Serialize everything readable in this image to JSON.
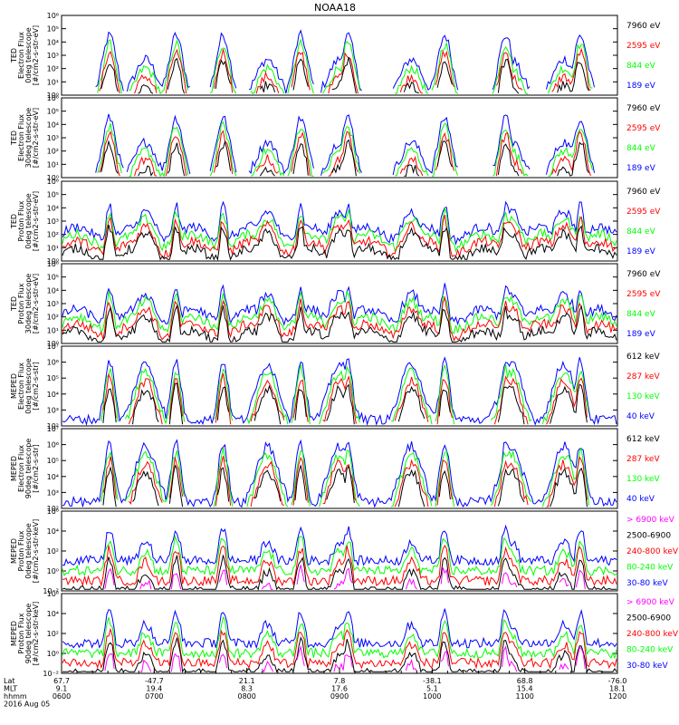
{
  "title": "NOAA18",
  "colors": {
    "black": "#000000",
    "red": "#ff0000",
    "green": "#00ff00",
    "blue": "#0000ff",
    "magenta": "#ff00ff"
  },
  "chart_data": {
    "type": "line",
    "x_tick_labels": {
      "lat": [
        "67.7",
        "-47.7",
        "21.1",
        "7.8",
        "-38.1",
        "68.8",
        "-76.0"
      ],
      "mlt": [
        "9.1",
        "19.4",
        "8.3",
        "17.6",
        "5.1",
        "15.4",
        "18.1"
      ],
      "hhmm": [
        "0600",
        "0700",
        "0800",
        "0900",
        "1000",
        "1100",
        "1200"
      ]
    },
    "x_row_labels": [
      "Lat",
      "MLT",
      "hhmm"
    ],
    "date_label": "2016 Aug 05",
    "xlim": [
      "0600",
      "1200"
    ],
    "panels": [
      {
        "ylabel": [
          "TED",
          "Electron Flux",
          "0deg telescope",
          "[#/cm2-s-str-eV]"
        ],
        "yticks": [
          "10⁰",
          "10¹",
          "10²",
          "10³",
          "10⁴",
          "10⁵",
          "10⁶"
        ],
        "ylim": [
          1,
          1000000
        ],
        "log": true,
        "legend": [
          {
            "label": "7960 eV",
            "color": "#000000"
          },
          {
            "label": "2595 eV",
            "color": "#ff0000"
          },
          {
            "label": "844 eV",
            "color": "#00ff00"
          },
          {
            "label": "189 eV",
            "color": "#0000ff"
          }
        ]
      },
      {
        "ylabel": [
          "TED",
          "Electron Flux",
          "30deg telescope",
          "[#/cm2-s-str-eV]"
        ],
        "yticks": [
          "10⁰",
          "10¹",
          "10²",
          "10³",
          "10⁴",
          "10⁵",
          "10⁶"
        ],
        "ylim": [
          1,
          1000000
        ],
        "log": true,
        "legend": [
          {
            "label": "7960 eV",
            "color": "#000000"
          },
          {
            "label": "2595 eV",
            "color": "#ff0000"
          },
          {
            "label": "844 eV",
            "color": "#00ff00"
          },
          {
            "label": "189 eV",
            "color": "#0000ff"
          }
        ]
      },
      {
        "ylabel": [
          "TED",
          "Proton Flux",
          "0deg telescope",
          "[#/cm2-s-str-eV]"
        ],
        "yticks": [
          "10⁰",
          "10¹",
          "10²",
          "10³",
          "10⁴",
          "10⁵",
          "10⁶"
        ],
        "ylim": [
          1,
          1000000
        ],
        "log": true,
        "legend": [
          {
            "label": "7960 eV",
            "color": "#000000"
          },
          {
            "label": "2595 eV",
            "color": "#ff0000"
          },
          {
            "label": "844 eV",
            "color": "#00ff00"
          },
          {
            "label": "189 eV",
            "color": "#0000ff"
          }
        ]
      },
      {
        "ylabel": [
          "TED",
          "Proton Flux",
          "30deg telescope",
          "[#/cm2-s-str-eV]"
        ],
        "yticks": [
          "10⁰",
          "10¹",
          "10²",
          "10³",
          "10⁴",
          "10⁵",
          "10⁶"
        ],
        "ylim": [
          1,
          1000000
        ],
        "log": true,
        "legend": [
          {
            "label": "7960 eV",
            "color": "#000000"
          },
          {
            "label": "2595 eV",
            "color": "#ff0000"
          },
          {
            "label": "844 eV",
            "color": "#00ff00"
          },
          {
            "label": "189 eV",
            "color": "#0000ff"
          }
        ]
      },
      {
        "ylabel": [
          "MEPED",
          "Electron Flux",
          "0deg telescope",
          "[#/cm2-s-str]"
        ],
        "yticks": [
          "10²",
          "10³",
          "10⁴",
          "10⁵",
          "10⁶",
          "10⁷"
        ],
        "ylim": [
          100,
          10000000
        ],
        "log": true,
        "legend": [
          {
            "label": "612 keV",
            "color": "#000000"
          },
          {
            "label": "287 keV",
            "color": "#ff0000"
          },
          {
            "label": "130 keV",
            "color": "#00ff00"
          },
          {
            "label": "40 keV",
            "color": "#0000ff"
          }
        ]
      },
      {
        "ylabel": [
          "MEPED",
          "Electron Flux",
          "90deg telescope",
          "[#/cm2-s-str]"
        ],
        "yticks": [
          "10²",
          "10³",
          "10⁴",
          "10⁵",
          "10⁶",
          "10⁷"
        ],
        "ylim": [
          100,
          10000000
        ],
        "log": true,
        "legend": [
          {
            "label": "612 keV",
            "color": "#000000"
          },
          {
            "label": "287 keV",
            "color": "#ff0000"
          },
          {
            "label": "130 keV",
            "color": "#00ff00"
          },
          {
            "label": "40 keV",
            "color": "#0000ff"
          }
        ]
      },
      {
        "ylabel": [
          "MEPED",
          "Proton Flux",
          "0deg telescope",
          "[#/cm2-s-str-keV]"
        ],
        "yticks": [
          "10⁻²",
          "10⁰",
          "10²",
          "10⁴",
          "10⁶"
        ],
        "ylim": [
          0.01,
          1000000
        ],
        "log": true,
        "legend": [
          {
            "label": "> 6900 keV",
            "color": "#ff00ff"
          },
          {
            "label": "2500-6900",
            "color": "#000000"
          },
          {
            "label": "240-800 keV",
            "color": "#ff0000"
          },
          {
            "label": "80-240 keV",
            "color": "#00ff00"
          },
          {
            "label": "30-80 keV",
            "color": "#0000ff"
          }
        ]
      },
      {
        "ylabel": [
          "MEPED",
          "Proton Flux",
          "90deg telescope",
          "[#/cm2-s-str-keV]"
        ],
        "yticks": [
          "10⁻²",
          "10⁰",
          "10²",
          "10⁴",
          "10⁶"
        ],
        "ylim": [
          0.01,
          1000000
        ],
        "log": true,
        "legend": [
          {
            "label": "> 6900 keV",
            "color": "#ff00ff"
          },
          {
            "label": "2500-6900",
            "color": "#000000"
          },
          {
            "label": "240-800 keV",
            "color": "#ff0000"
          },
          {
            "label": "80-240 keV",
            "color": "#00ff00"
          },
          {
            "label": "30-80 keV",
            "color": "#0000ff"
          }
        ]
      }
    ]
  }
}
